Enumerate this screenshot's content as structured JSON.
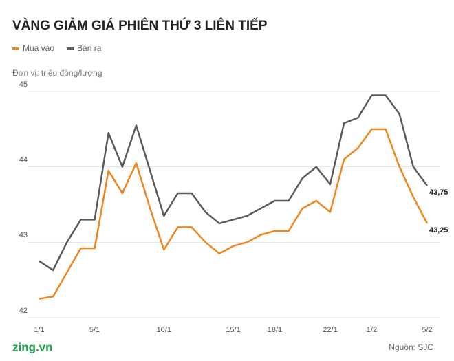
{
  "chart_data": {
    "type": "line",
    "title": "VÀNG GIẢM GIÁ PHIÊN THỨ 3 LIÊN TIẾP",
    "unit_label": "Đơn vị: triệu đồng/lượng",
    "source": "Nguồn: SJC",
    "logo": "zing.vn",
    "categories": [
      "1/1",
      null,
      null,
      null,
      "5/1",
      null,
      null,
      null,
      null,
      "10/1",
      null,
      null,
      null,
      null,
      "15/1",
      null,
      null,
      "18/1",
      null,
      null,
      null,
      "22/1",
      null,
      null,
      "1/2",
      null,
      null,
      null,
      "5/2"
    ],
    "series": [
      {
        "name": "Mua vào",
        "color": "#f0861e",
        "values": [
          42.25,
          42.28,
          42.6,
          42.92,
          42.92,
          43.95,
          43.65,
          44.05,
          43.45,
          42.9,
          43.2,
          43.2,
          43.0,
          42.85,
          42.95,
          43.0,
          43.1,
          43.15,
          43.15,
          43.45,
          43.55,
          43.4,
          44.1,
          44.25,
          44.5,
          44.5,
          44.0,
          43.6,
          43.25
        ],
        "value_labels": [
          null,
          null,
          null,
          null,
          null,
          null,
          null,
          null,
          null,
          null,
          null,
          null,
          null,
          null,
          null,
          null,
          null,
          null,
          null,
          null,
          null,
          null,
          null,
          null,
          null,
          null,
          null,
          null,
          "43,25"
        ]
      },
      {
        "name": "Bán ra",
        "color": "#5a5a5a",
        "values": [
          42.75,
          42.63,
          43.0,
          43.3,
          43.3,
          44.45,
          44.0,
          44.55,
          43.95,
          43.35,
          43.65,
          43.65,
          43.4,
          43.25,
          43.3,
          43.35,
          43.45,
          43.55,
          43.55,
          43.85,
          44.0,
          43.77,
          44.58,
          44.65,
          44.95,
          44.95,
          44.7,
          44.0,
          43.75
        ],
        "value_labels": [
          null,
          null,
          null,
          null,
          null,
          null,
          null,
          null,
          null,
          null,
          null,
          null,
          null,
          null,
          null,
          null,
          null,
          null,
          null,
          null,
          null,
          null,
          null,
          null,
          null,
          null,
          null,
          null,
          "43,75"
        ]
      }
    ],
    "ylim": [
      42,
      45
    ],
    "yticks": [
      42,
      43,
      44,
      45
    ],
    "grid": true
  }
}
